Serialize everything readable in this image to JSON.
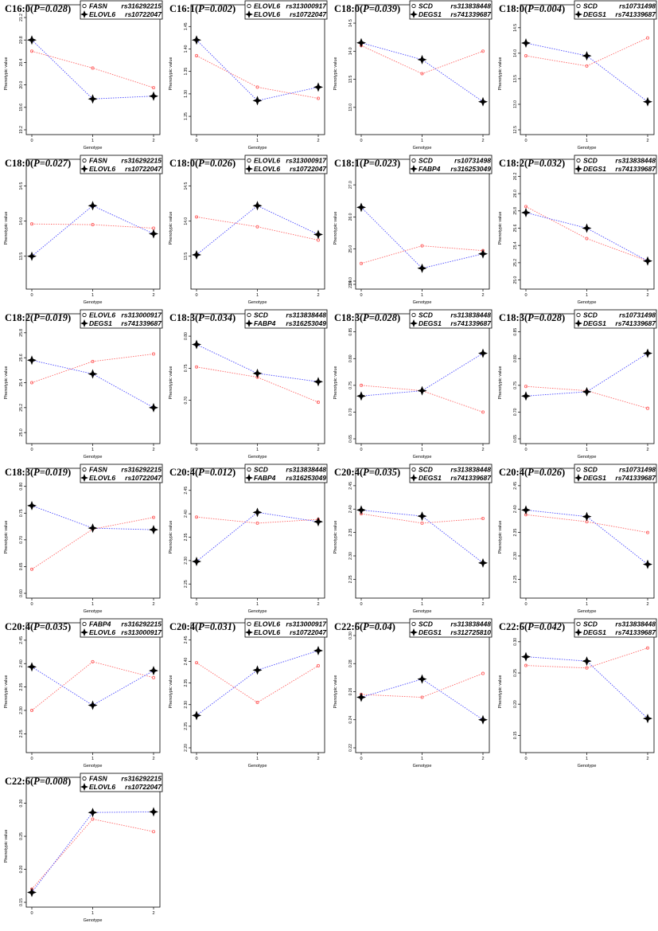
{
  "colors": {
    "series_a": "#ff6666",
    "series_b": "#4b4bff",
    "axis": "#000000"
  },
  "icons": {
    "legend_open": "open-circle-icon",
    "legend_cross": "cross-plus-icon"
  },
  "chart_data": [
    {
      "type": "line",
      "title": "C16:0",
      "p": "0.028",
      "legend": [
        {
          "gene": "FASN",
          "snp": "rs316292215"
        },
        {
          "gene": "ELOVL6",
          "snp": "rs10722047"
        }
      ],
      "xlabel": "Genotype",
      "ylabel": "Phenotypic value",
      "x": [
        0,
        1,
        2
      ],
      "yticks": [
        "19.2",
        "19.6",
        "20.0",
        "20.4",
        "20.8",
        "21.2"
      ],
      "ylim": [
        19.2,
        21.2
      ],
      "series": [
        {
          "values": [
            20.6,
            20.3,
            19.95
          ]
        },
        {
          "values": [
            20.8,
            19.75,
            19.8
          ]
        }
      ]
    },
    {
      "type": "line",
      "title": "C16:1",
      "p": "0.002",
      "legend": [
        {
          "gene": "ELOVL6",
          "snp": "rs313000917"
        },
        {
          "gene": "ELOVL6",
          "snp": "rs10722047"
        }
      ],
      "xlabel": "Genotype",
      "ylabel": "Phenotypic value",
      "x": [
        0,
        1,
        2
      ],
      "yticks": [
        "1.25",
        "1.30",
        "1.35",
        "1.40",
        "1.45"
      ],
      "ylim": [
        1.22,
        1.47
      ],
      "series": [
        {
          "values": [
            1.385,
            1.315,
            1.29
          ]
        },
        {
          "values": [
            1.42,
            1.285,
            1.315
          ]
        }
      ]
    },
    {
      "type": "line",
      "title": "C18:0",
      "p": "0.039",
      "legend": [
        {
          "gene": "SCD",
          "snp": "rs313838448"
        },
        {
          "gene": "DEGS1",
          "snp": "rs741339687"
        }
      ],
      "xlabel": "Genotype",
      "ylabel": "Phenotypic value",
      "x": [
        0,
        1,
        2
      ],
      "yticks": [
        "13.0",
        "13.5",
        "14.0",
        "14.5"
      ],
      "ylim": [
        12.6,
        14.6
      ],
      "series": [
        {
          "values": [
            14.1,
            13.6,
            14.0
          ]
        },
        {
          "values": [
            14.15,
            13.85,
            13.1
          ]
        }
      ]
    },
    {
      "type": "line",
      "title": "C18:0",
      "p": "0.004",
      "legend": [
        {
          "gene": "SCD",
          "snp": "rs10731498"
        },
        {
          "gene": "DEGS1",
          "snp": "rs741339687"
        }
      ],
      "xlabel": "Genotype",
      "ylabel": "Phenotypic value",
      "x": [
        0,
        1,
        2
      ],
      "yticks": [
        "12.5",
        "13.0",
        "13.5",
        "14.0",
        "14.5"
      ],
      "ylim": [
        12.5,
        14.7
      ],
      "series": [
        {
          "values": [
            13.95,
            13.75,
            14.3
          ]
        },
        {
          "values": [
            14.2,
            13.95,
            13.05
          ]
        }
      ]
    },
    {
      "type": "line",
      "title": "C18:0",
      "p": "0.027",
      "legend": [
        {
          "gene": "FASN",
          "snp": "rs316292215"
        },
        {
          "gene": "ELOVL6",
          "snp": "rs10722047"
        }
      ],
      "xlabel": "Genotype",
      "ylabel": "Phenotypic value",
      "x": [
        0,
        1,
        2
      ],
      "yticks": [
        "13.5",
        "14.0",
        "14.5"
      ],
      "ylim": [
        13.1,
        14.7
      ],
      "series": [
        {
          "values": [
            13.96,
            13.95,
            13.9
          ]
        },
        {
          "values": [
            13.5,
            14.22,
            13.82
          ]
        }
      ]
    },
    {
      "type": "line",
      "title": "C18:0",
      "p": "0.026",
      "legend": [
        {
          "gene": "ELOVL6",
          "snp": "rs313000917"
        },
        {
          "gene": "ELOVL6",
          "snp": "rs10722047"
        }
      ],
      "xlabel": "Genotype",
      "ylabel": "Phenotypic value",
      "x": [
        0,
        1,
        2
      ],
      "yticks": [
        "13.5",
        "14.0",
        "14.5"
      ],
      "ylim": [
        13.1,
        14.7
      ],
      "series": [
        {
          "values": [
            14.06,
            13.92,
            13.73
          ]
        },
        {
          "values": [
            13.52,
            14.22,
            13.81
          ]
        }
      ]
    },
    {
      "type": "line",
      "title": "C18:1",
      "p": "0.023",
      "legend": [
        {
          "gene": "SCD",
          "snp": "rs10731498"
        },
        {
          "gene": "FABP4",
          "snp": "rs316253049"
        }
      ],
      "xlabel": "Genotype",
      "ylabel": "Phenotypic value",
      "x": [
        0,
        1,
        2
      ],
      "yticks": [
        "23.9",
        "24.0",
        "25.0",
        "26.0",
        "27.0"
      ],
      "ylim": [
        23.9,
        27.4
      ],
      "series": [
        {
          "values": [
            24.55,
            25.1,
            24.95
          ]
        },
        {
          "values": [
            26.3,
            24.4,
            24.85
          ]
        }
      ]
    },
    {
      "type": "line",
      "title": "C18:2",
      "p": "0.032",
      "legend": [
        {
          "gene": "SCD",
          "snp": "rs313838448"
        },
        {
          "gene": "DEGS1",
          "snp": "rs741339687"
        }
      ],
      "xlabel": "Genotype",
      "ylabel": "Phenotypic value",
      "x": [
        0,
        1,
        2
      ],
      "yticks": [
        "25.0",
        "25.2",
        "25.4",
        "25.6",
        "25.8",
        "26.0",
        "26.2"
      ],
      "ylim": [
        24.95,
        26.25
      ],
      "series": [
        {
          "values": [
            25.85,
            25.48,
            25.22
          ]
        },
        {
          "values": [
            25.78,
            25.6,
            25.22
          ]
        }
      ]
    },
    {
      "type": "line",
      "title": "C18:2",
      "p": "0.019",
      "legend": [
        {
          "gene": "ELOVL6",
          "snp": "rs313000917"
        },
        {
          "gene": "DEGS1",
          "snp": "rs741339687"
        }
      ],
      "xlabel": "Genotype",
      "ylabel": "Phenotypic value",
      "x": [
        0,
        1,
        2
      ],
      "yticks": [
        "25.0",
        "25.2",
        "25.4",
        "25.6",
        "25.8"
      ],
      "ylim": [
        24.95,
        25.85
      ],
      "series": [
        {
          "values": [
            25.4,
            25.57,
            25.63
          ]
        },
        {
          "values": [
            25.58,
            25.47,
            25.2
          ]
        }
      ]
    },
    {
      "type": "line",
      "title": "C18:3",
      "p": "0.034",
      "legend": [
        {
          "gene": "SCD",
          "snp": "rs313838448"
        },
        {
          "gene": "FABP4",
          "snp": "rs316253049"
        }
      ],
      "xlabel": "Genotype",
      "ylabel": "Phenotypic value",
      "x": [
        0,
        1,
        2
      ],
      "yticks": [
        "0.70",
        "0.75",
        "0.80"
      ],
      "ylim": [
        0.64,
        0.815
      ],
      "series": [
        {
          "values": [
            0.752,
            0.736,
            0.697
          ]
        },
        {
          "values": [
            0.787,
            0.742,
            0.729
          ]
        }
      ]
    },
    {
      "type": "line",
      "title": "C18:3",
      "p": "0.028",
      "legend": [
        {
          "gene": "SCD",
          "snp": "rs313838448"
        },
        {
          "gene": "DEGS1",
          "snp": "rs741339687"
        }
      ],
      "xlabel": "Genotype",
      "ylabel": "Phenotypic value",
      "x": [
        0,
        1,
        2
      ],
      "yticks": [
        "0.65",
        "0.70",
        "0.75",
        "0.80",
        "0.85"
      ],
      "ylim": [
        0.65,
        0.86
      ],
      "series": [
        {
          "values": [
            0.75,
            0.74,
            0.7
          ]
        },
        {
          "values": [
            0.73,
            0.74,
            0.81
          ]
        }
      ]
    },
    {
      "type": "line",
      "title": "C18:3",
      "p": "0.028",
      "legend": [
        {
          "gene": "SCD",
          "snp": "rs10731498"
        },
        {
          "gene": "DEGS1",
          "snp": "rs741339687"
        }
      ],
      "xlabel": "Genotype",
      "ylabel": "Phenotypic value",
      "x": [
        0,
        1,
        2
      ],
      "yticks": [
        "0.65",
        "0.70",
        "0.75",
        "0.80",
        "0.85"
      ],
      "ylim": [
        0.65,
        0.86
      ],
      "series": [
        {
          "values": [
            0.748,
            0.74,
            0.707
          ]
        },
        {
          "values": [
            0.73,
            0.738,
            0.81
          ]
        }
      ]
    },
    {
      "type": "line",
      "title": "C18:3",
      "p": "0.019",
      "legend": [
        {
          "gene": "FASN",
          "snp": "rs316292215"
        },
        {
          "gene": "ELOVL6",
          "snp": "rs10722047"
        }
      ],
      "xlabel": "Genotype",
      "ylabel": "Phenotypic value",
      "x": [
        0,
        1,
        2
      ],
      "yticks": [
        "0.60",
        "0.65",
        "0.70",
        "0.75",
        "0.80"
      ],
      "ylim": [
        0.6,
        0.81
      ],
      "series": [
        {
          "values": [
            0.645,
            0.72,
            0.742
          ]
        },
        {
          "values": [
            0.764,
            0.722,
            0.719
          ]
        }
      ]
    },
    {
      "type": "line",
      "title": "C20:4",
      "p": "0.012",
      "legend": [
        {
          "gene": "SCD",
          "snp": "rs313838448"
        },
        {
          "gene": "FABP4",
          "snp": "rs316253049"
        }
      ],
      "xlabel": "Genotype",
      "ylabel": "Phenotypic value",
      "x": [
        0,
        1,
        2
      ],
      "yticks": [
        "2.25",
        "2.30",
        "2.35",
        "2.40",
        "2.45"
      ],
      "ylim": [
        2.23,
        2.47
      ],
      "series": [
        {
          "values": [
            2.393,
            2.38,
            2.388
          ]
        },
        {
          "values": [
            2.298,
            2.403,
            2.383
          ]
        }
      ]
    },
    {
      "type": "line",
      "title": "C20:4",
      "p": "0.035",
      "legend": [
        {
          "gene": "SCD",
          "snp": "rs313838448"
        },
        {
          "gene": "DEGS1",
          "snp": "rs741339687"
        }
      ],
      "xlabel": "Genotype",
      "ylabel": "Phenotypic value",
      "x": [
        0,
        1,
        2
      ],
      "yticks": [
        "2.25",
        "2.30",
        "2.35",
        "2.40",
        "2.45"
      ],
      "ylim": [
        2.22,
        2.46
      ],
      "series": [
        {
          "values": [
            2.39,
            2.37,
            2.38
          ]
        },
        {
          "values": [
            2.398,
            2.385,
            2.285
          ]
        }
      ]
    },
    {
      "type": "line",
      "title": "C20:4",
      "p": "0.026",
      "legend": [
        {
          "gene": "SCD",
          "snp": "rs10731498"
        },
        {
          "gene": "DEGS1",
          "snp": "rs741339687"
        }
      ],
      "xlabel": "Genotype",
      "ylabel": "Phenotypic value",
      "x": [
        0,
        1,
        2
      ],
      "yticks": [
        "2.25",
        "2.30",
        "2.35",
        "2.40",
        "2.45"
      ],
      "ylim": [
        2.22,
        2.46
      ],
      "series": [
        {
          "values": [
            2.388,
            2.373,
            2.35
          ]
        },
        {
          "values": [
            2.398,
            2.384,
            2.282
          ]
        }
      ]
    },
    {
      "type": "line",
      "title": "C20:4",
      "p": "0.035",
      "legend": [
        {
          "gene": "FABP4",
          "snp": "rs316292215"
        },
        {
          "gene": "ELOVL6",
          "snp": "rs313000917"
        }
      ],
      "xlabel": "Genotype",
      "ylabel": "Phenotypic value",
      "x": [
        0,
        1,
        2
      ],
      "yticks": [
        "2.25",
        "2.30",
        "2.35",
        "2.40",
        "2.45"
      ],
      "ylim": [
        2.22,
        2.46
      ],
      "series": [
        {
          "values": [
            2.3,
            2.404,
            2.37
          ]
        },
        {
          "values": [
            2.393,
            2.311,
            2.385
          ]
        }
      ]
    },
    {
      "type": "line",
      "title": "C20:4",
      "p": "0.031",
      "legend": [
        {
          "gene": "ELOVL6",
          "snp": "rs313000917"
        },
        {
          "gene": "ELOVL6",
          "snp": "rs10722047"
        }
      ],
      "xlabel": "Genotype",
      "ylabel": "Phenotypic value",
      "x": [
        0,
        1,
        2
      ],
      "yticks": [
        "2.20",
        "2.25",
        "2.30",
        "2.35",
        "2.40",
        "2.45"
      ],
      "ylim": [
        2.2,
        2.46
      ],
      "series": [
        {
          "values": [
            2.397,
            2.305,
            2.39
          ]
        },
        {
          "values": [
            2.275,
            2.38,
            2.425
          ]
        }
      ]
    },
    {
      "type": "line",
      "title": "C22:6",
      "p": "0.04",
      "legend": [
        {
          "gene": "SCD",
          "snp": "rs313838448"
        },
        {
          "gene": "DEGS1",
          "snp": "rs312725810"
        }
      ],
      "xlabel": "Genotype",
      "ylabel": "Phenotypic value",
      "x": [
        0,
        1,
        2
      ],
      "yticks": [
        "0.22",
        "0.24",
        "0.26",
        "0.28",
        "0.30"
      ],
      "ylim": [
        0.22,
        0.3
      ],
      "series": [
        {
          "values": [
            0.258,
            0.256,
            0.273
          ]
        },
        {
          "values": [
            0.256,
            0.269,
            0.24
          ]
        }
      ]
    },
    {
      "type": "line",
      "title": "C22:6",
      "p": "0.042",
      "legend": [
        {
          "gene": "SCD",
          "snp": "rs313838448"
        },
        {
          "gene": "DEGS1",
          "snp": "rs741339687"
        }
      ],
      "xlabel": "Genotype",
      "ylabel": "Phenotypic value",
      "x": [
        0,
        1,
        2
      ],
      "yticks": [
        "0.15",
        "0.20",
        "0.25",
        "0.30"
      ],
      "ylim": [
        0.13,
        0.31
      ],
      "series": [
        {
          "values": [
            0.262,
            0.258,
            0.29
          ]
        },
        {
          "values": [
            0.276,
            0.269,
            0.177
          ]
        }
      ]
    },
    {
      "type": "line",
      "title": "C22:6",
      "p": "0.008",
      "legend": [
        {
          "gene": "FASN",
          "snp": "rs316292215"
        },
        {
          "gene": "ELOVL6",
          "snp": "rs10722047"
        }
      ],
      "xlabel": "Genotype",
      "ylabel": "Phenotypic value",
      "x": [
        0,
        1,
        2
      ],
      "yticks": [
        "0.15",
        "0.20",
        "0.25",
        "0.30"
      ],
      "ylim": [
        0.15,
        0.32
      ],
      "series": [
        {
          "values": [
            0.17,
            0.276,
            0.257
          ]
        },
        {
          "values": [
            0.165,
            0.286,
            0.287
          ]
        }
      ]
    }
  ]
}
